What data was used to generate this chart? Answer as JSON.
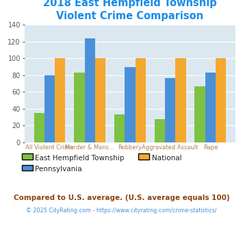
{
  "title": "2018 East Hempfield Township\nViolent Crime Comparison",
  "title_color": "#1a8ce8",
  "categories": [
    "All Violent Crime",
    "Murder & Mans...",
    "Robbery",
    "Aggravated Assault",
    "Rape"
  ],
  "cat_labels_top": [
    "",
    "Murder & Mans...",
    "",
    "Aggravated Assault",
    ""
  ],
  "cat_labels_bot": [
    "All Violent Crime",
    "",
    "Robbery",
    "",
    "Rape"
  ],
  "local_values": [
    35,
    83,
    33,
    28,
    67
  ],
  "state_values": [
    80,
    124,
    90,
    77,
    83
  ],
  "national_values": [
    100,
    100,
    100,
    100,
    100
  ],
  "local_color": "#7dc242",
  "national_color": "#f5a830",
  "state_color": "#4a90d9",
  "bg_color": "#dce8f0",
  "ylim": [
    0,
    140
  ],
  "yticks": [
    0,
    20,
    40,
    60,
    80,
    100,
    120,
    140
  ],
  "legend_labels": [
    "East Hempfield Township",
    "National",
    "Pennsylvania"
  ],
  "footnote1": "Compared to U.S. average. (U.S. average equals 100)",
  "footnote2": "© 2025 CityRating.com - https://www.cityrating.com/crime-statistics/",
  "footnote1_color": "#8b4513",
  "footnote2_color": "#4a90d9",
  "tick_label_color": "#b08050",
  "grid_color": "#ffffff"
}
